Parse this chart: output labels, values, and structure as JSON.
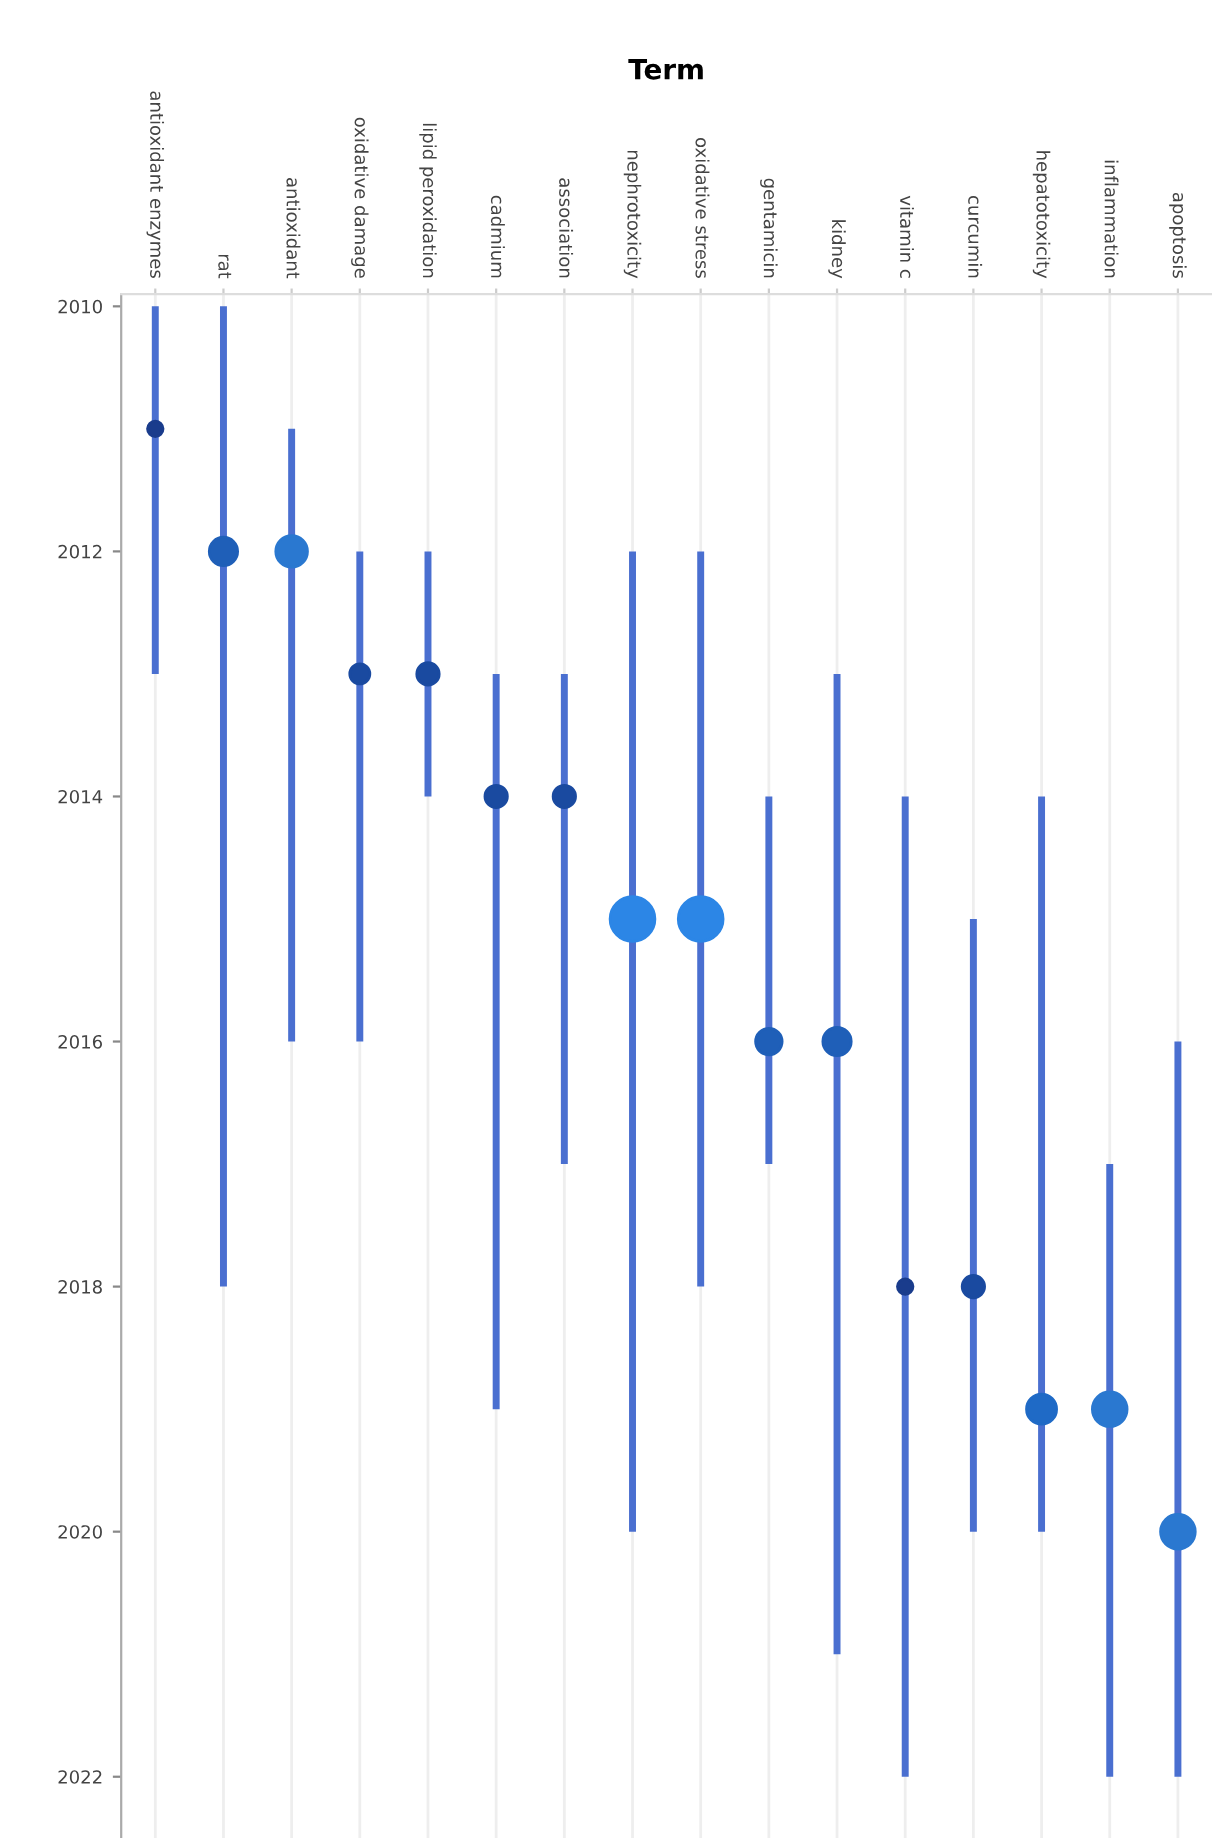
{
  "chart_data": {
    "type": "bubble",
    "xlabel": "Term",
    "categories": [
      "antioxidant enzymes",
      "rat",
      "antioxidant",
      "oxidative damage",
      "lipid peroxidation",
      "cadmium",
      "association",
      "nephrotoxicity",
      "oxidative stress",
      "gentamicin",
      "kidney",
      "vitamin c",
      "curcumin",
      "hepatotoxicity",
      "inflammation",
      "apoptosis"
    ],
    "values": [
      2011,
      2012,
      2012,
      2013,
      2013,
      2014,
      2014,
      2015,
      2015,
      2016,
      2016,
      2018,
      2018,
      2019,
      2019,
      2020
    ],
    "errors": [
      [
        2010,
        2013
      ],
      [
        2010,
        2018
      ],
      [
        2011,
        2016
      ],
      [
        2012,
        2016
      ],
      [
        2012,
        2014
      ],
      [
        2013,
        2019
      ],
      [
        2013,
        2017
      ],
      [
        2012,
        2020
      ],
      [
        2012,
        2018
      ],
      [
        2014,
        2017
      ],
      [
        2013,
        2021
      ],
      [
        2014,
        2022
      ],
      [
        2015,
        2020
      ],
      [
        2014,
        2020
      ],
      [
        2017,
        2022
      ],
      [
        2016,
        2022
      ]
    ],
    "sizes": [
      0.12,
      0.4,
      0.5,
      0.2,
      0.25,
      0.25,
      0.25,
      1,
      1,
      0.35,
      0.4,
      0.12,
      0.25,
      0.45,
      0.6,
      0.6
    ],
    "colors": [
      "#1a3c8c",
      "#1f5fb8",
      "#2a78d0",
      "#1a4aa0",
      "#1a4aa0",
      "#1a4aa0",
      "#1a4aa0",
      "#2c86e6",
      "#2c86e6",
      "#1f5fb8",
      "#1f5fb8",
      "#1a3c8c",
      "#1a4aa0",
      "#1f6ac6",
      "#2a78d0",
      "#2a78d0"
    ],
    "ylim": [
      2022.5,
      2009.9
    ],
    "yticks": [
      2010,
      2012,
      2014,
      2016,
      2018,
      2020,
      2022
    ],
    "grid": "x"
  }
}
